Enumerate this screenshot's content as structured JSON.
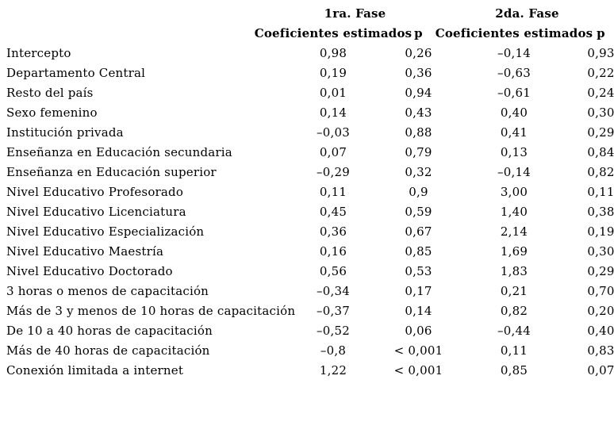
{
  "table": {
    "phase1_header": "1ra. Fase",
    "phase2_header": "2da. Fase",
    "coef_column_label": "Coeficientes estimados",
    "p_column_label": "p",
    "rows": [
      {
        "label": "Intercepto",
        "coef1": "0,98",
        "p1": "0,26",
        "coef2": "–0,14",
        "p2": "0,93"
      },
      {
        "label": "Departamento Central",
        "coef1": "0,19",
        "p1": "0,36",
        "coef2": "–0,63",
        "p2": "0,22"
      },
      {
        "label": "Resto del país",
        "coef1": "0,01",
        "p1": "0,94",
        "coef2": "–0,61",
        "p2": "0,24"
      },
      {
        "label": "Sexo femenino",
        "coef1": "0,14",
        "p1": "0,43",
        "coef2": "0,40",
        "p2": "0,30"
      },
      {
        "label": "Institución privada",
        "coef1": "–0,03",
        "p1": "0,88",
        "coef2": "0,41",
        "p2": "0,29"
      },
      {
        "label": "Enseñanza en Educación secundaria",
        "coef1": "0,07",
        "p1": "0,79",
        "coef2": "0,13",
        "p2": "0,84"
      },
      {
        "label": "Enseñanza en Educación superior",
        "coef1": "–0,29",
        "p1": "0,32",
        "coef2": "–0,14",
        "p2": "0,82"
      },
      {
        "label": "Nivel Educativo Profesorado",
        "coef1": "0,11",
        "p1": "0,9",
        "coef2": "3,00",
        "p2": "0,11"
      },
      {
        "label": "Nivel Educativo Licenciatura",
        "coef1": "0,45",
        "p1": "0,59",
        "coef2": "1,40",
        "p2": "0,38"
      },
      {
        "label": "Nivel Educativo Especialización",
        "coef1": "0,36",
        "p1": "0,67",
        "coef2": "2,14",
        "p2": "0,19"
      },
      {
        "label": "Nivel Educativo Maestría",
        "coef1": "0,16",
        "p1": "0,85",
        "coef2": "1,69",
        "p2": "0,30"
      },
      {
        "label": "Nivel Educativo Doctorado",
        "coef1": "0,56",
        "p1": "0,53",
        "coef2": "1,83",
        "p2": "0,29"
      },
      {
        "label": "3 horas o menos de capacitación",
        "coef1": "–0,34",
        "p1": "0,17",
        "coef2": "0,21",
        "p2": "0,70"
      },
      {
        "label": "Más de 3 y menos de 10 horas de capacitación",
        "coef1": "–0,37",
        "p1": "0,14",
        "coef2": "0,82",
        "p2": "0,20"
      },
      {
        "label": "De 10 a 40 horas de capacitación",
        "coef1": "–0,52",
        "p1": "0,06",
        "coef2": "–0,44",
        "p2": "0,40"
      },
      {
        "label": "Más de 40 horas de capacitación",
        "coef1": "–0,8",
        "p1": "< 0,001",
        "coef2": "0,11",
        "p2": "0,83"
      },
      {
        "label": "Conexión limitada a internet",
        "coef1": "1,22",
        "p1": "< 0,001",
        "coef2": "0,85",
        "p2": "0,07"
      }
    ]
  }
}
